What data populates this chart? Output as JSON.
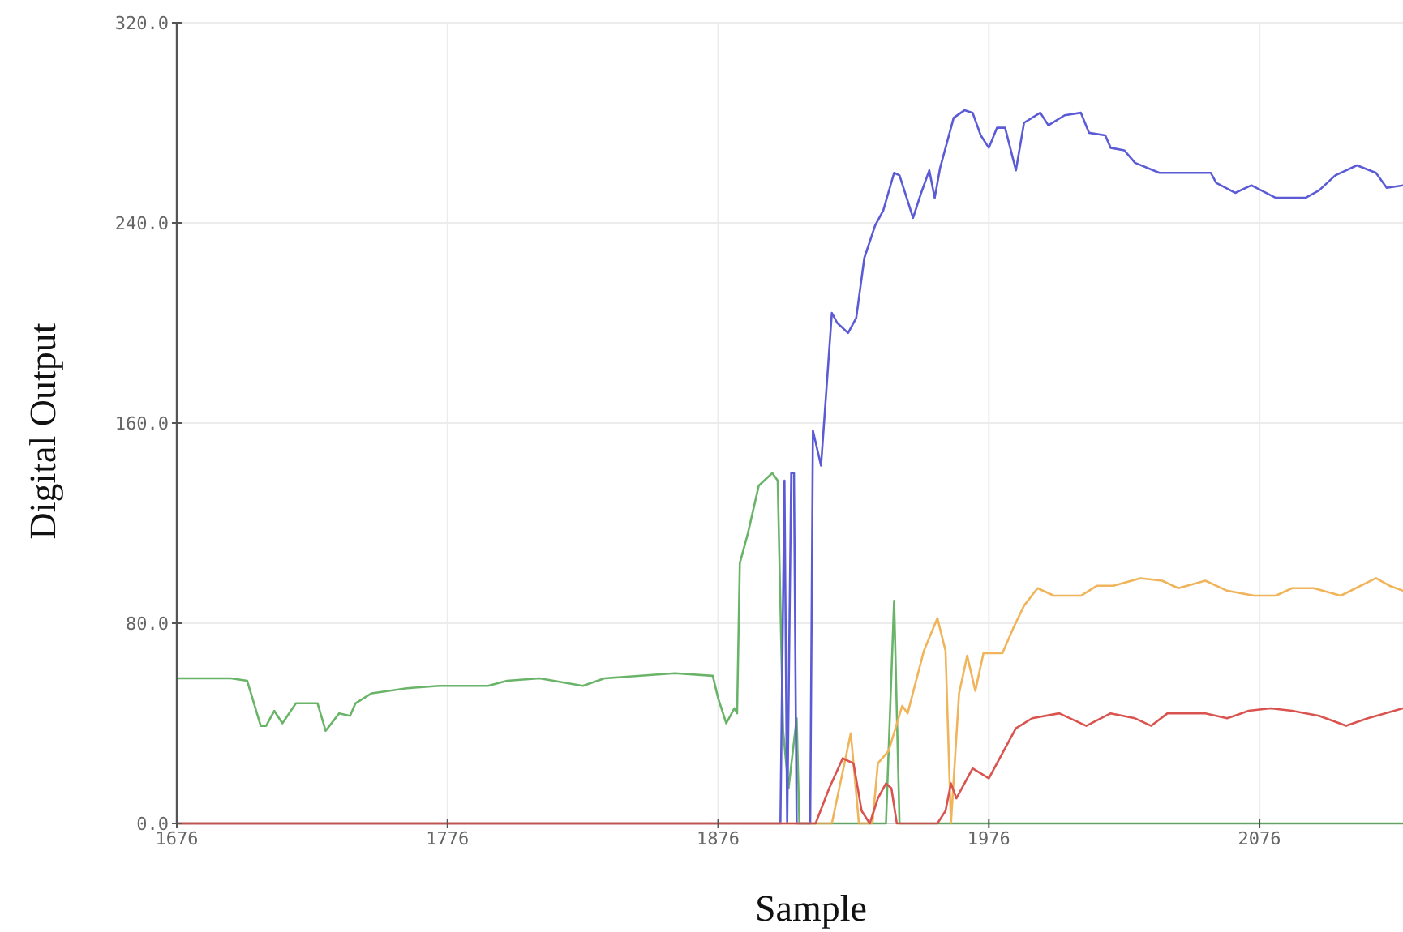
{
  "chart_data": {
    "type": "line",
    "xlabel": "Sample",
    "ylabel": "Digital Output",
    "xlim": [
      1676,
      2129
    ],
    "ylim": [
      0,
      320
    ],
    "xticks": [
      1676,
      1776,
      1876,
      1976,
      2076
    ],
    "yticks": [
      {
        "value": 0,
        "label": "0.0"
      },
      {
        "value": 80,
        "label": "80.0"
      },
      {
        "value": 160,
        "label": "160.0"
      },
      {
        "value": 240,
        "label": "240.0"
      },
      {
        "value": 320,
        "label": "320.0"
      }
    ],
    "grid": true,
    "marker": "none",
    "line_style": "solid",
    "series": [
      {
        "color": "#6ab46a",
        "x": [
          1676,
          1677,
          1696,
          1702,
          1707,
          1709,
          1712,
          1715,
          1720,
          1728,
          1731,
          1736,
          1740,
          1742,
          1748,
          1761,
          1773,
          1791,
          1798,
          1810,
          1826,
          1834,
          1860,
          1874,
          1876,
          1879,
          1882,
          1883,
          1884,
          1887,
          1891,
          1896,
          1898,
          1900,
          1902,
          1905,
          1906,
          1938,
          1941,
          1943,
          2129
        ],
        "values": [
          58,
          58,
          58,
          57,
          39,
          39,
          45,
          40,
          48,
          48,
          37,
          44,
          43,
          48,
          52,
          54,
          55,
          55,
          57,
          58,
          55,
          58,
          60,
          59,
          50,
          40,
          46,
          44,
          104,
          116,
          135,
          140,
          137,
          37,
          14,
          42,
          0,
          0,
          89,
          0,
          0
        ]
      },
      {
        "color": "#5b5bd6",
        "x": [
          1676,
          1899,
          1900.5,
          1901.5,
          1903,
          1904,
          1905,
          1910,
          1911,
          1914,
          1918,
          1920,
          1924,
          1927,
          1930,
          1934,
          1937,
          1941,
          1943,
          1948,
          1951,
          1954,
          1956,
          1958,
          1963,
          1967,
          1970,
          1973,
          1976,
          1979,
          1982,
          1986,
          1989,
          1995,
          1998,
          2004,
          2010,
          2013,
          2019,
          2021,
          2026,
          2030,
          2039,
          2050,
          2058,
          2060,
          2067,
          2073,
          2082,
          2093,
          2098,
          2104,
          2112,
          2119,
          2123,
          2129
        ],
        "values": [
          0,
          0,
          137,
          0,
          140,
          140,
          0,
          0,
          157,
          143,
          204,
          200,
          196,
          202,
          226,
          239,
          245,
          260,
          259,
          242,
          252,
          261,
          250,
          262,
          282,
          285,
          284,
          275,
          270,
          278,
          278,
          261,
          280,
          284,
          279,
          283,
          284,
          276,
          275,
          270,
          269,
          264,
          260,
          260,
          260,
          256,
          252,
          255,
          250,
          250,
          253,
          259,
          263,
          260,
          254,
          255
        ]
      },
      {
        "color": "#f0b45a",
        "x": [
          1676,
          1918,
          1925,
          1928,
          1933,
          1935,
          1939,
          1944,
          1946,
          1952,
          1957,
          1960,
          1962,
          1965,
          1968,
          1971,
          1974,
          1977,
          1981,
          1985,
          1989,
          1994,
          2000,
          2010,
          2016,
          2022,
          2032,
          2040,
          2046,
          2056,
          2064,
          2074,
          2082,
          2088,
          2096,
          2106,
          2119,
          2124,
          2129
        ],
        "values": [
          0,
          0,
          36,
          0,
          0,
          24,
          29,
          47,
          44,
          69,
          82,
          69,
          0,
          52,
          67,
          53,
          68,
          68,
          68,
          78,
          87,
          94,
          91,
          91,
          95,
          95,
          98,
          97,
          94,
          97,
          93,
          91,
          91,
          94,
          94,
          91,
          98,
          95,
          93
        ]
      },
      {
        "color": "#d9534f",
        "x": [
          1676,
          1912,
          1917,
          1922,
          1926,
          1929,
          1932,
          1935,
          1938,
          1940,
          1942,
          1957,
          1960,
          1962,
          1964,
          1970,
          1976,
          1980,
          1986,
          1992,
          2002,
          2012,
          2021,
          2030,
          2036,
          2042,
          2056,
          2064,
          2072,
          2080,
          2088,
          2098,
          2108,
          2116,
          2129
        ],
        "values": [
          0,
          0,
          14,
          26,
          24,
          5,
          0,
          10,
          16,
          14,
          0,
          0,
          5,
          16,
          10,
          22,
          18,
          26,
          38,
          42,
          44,
          39,
          44,
          42,
          39,
          44,
          44,
          42,
          45,
          46,
          45,
          43,
          39,
          42,
          46
        ]
      }
    ]
  }
}
